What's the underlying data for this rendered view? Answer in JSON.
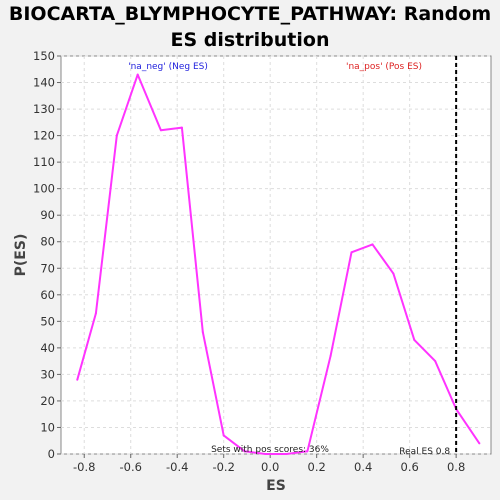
{
  "chart_data": {
    "type": "line",
    "title_line1": "BIOCARTA_BLYMPHOCYTE_PATHWAY: Random",
    "title_line2": "ES distribution",
    "xlabel": "ES",
    "ylabel": "P(ES)",
    "xlim": [
      -0.9,
      0.95
    ],
    "ylim": [
      0,
      150
    ],
    "x_ticks": [
      -0.8,
      -0.6,
      -0.4,
      -0.2,
      0.0,
      0.2,
      0.4,
      0.6,
      0.8
    ],
    "x_tick_labels": [
      "-0.8",
      "-0.6",
      "-0.4",
      "-0.2",
      "0.0",
      "0.2",
      "0.4",
      "0.6",
      "0.8"
    ],
    "y_ticks": [
      0,
      10,
      20,
      30,
      40,
      50,
      60,
      70,
      80,
      90,
      100,
      110,
      120,
      130,
      140,
      150
    ],
    "grid": true,
    "series": [
      {
        "name": "'na_neg' (Neg ES)",
        "color": "#ff33ff",
        "points": [
          {
            "x": -0.83,
            "y": 28
          },
          {
            "x": -0.75,
            "y": 53
          },
          {
            "x": -0.66,
            "y": 120
          },
          {
            "x": -0.57,
            "y": 143
          },
          {
            "x": -0.47,
            "y": 122
          },
          {
            "x": -0.38,
            "y": 123
          },
          {
            "x": -0.29,
            "y": 46
          },
          {
            "x": -0.2,
            "y": 7
          },
          {
            "x": -0.11,
            "y": 1
          },
          {
            "x": -0.02,
            "y": 0
          },
          {
            "x": 0.07,
            "y": 0
          },
          {
            "x": 0.16,
            "y": 1
          },
          {
            "x": 0.26,
            "y": 37
          },
          {
            "x": 0.35,
            "y": 76
          },
          {
            "x": 0.44,
            "y": 79
          },
          {
            "x": 0.53,
            "y": 68
          },
          {
            "x": 0.62,
            "y": 43
          },
          {
            "x": 0.71,
            "y": 35
          },
          {
            "x": 0.8,
            "y": 17
          },
          {
            "x": 0.9,
            "y": 4
          }
        ]
      }
    ],
    "legend_neg": {
      "text": "'na_neg' (Neg ES)",
      "color": "#2222dd"
    },
    "legend_pos": {
      "text": "'na_pos' (Pos ES)",
      "color": "#dd2222"
    },
    "annotation_sets": "Sets with pos scores: 36%",
    "real_es": {
      "x": 0.8,
      "label": "Real ES 0.8"
    }
  }
}
